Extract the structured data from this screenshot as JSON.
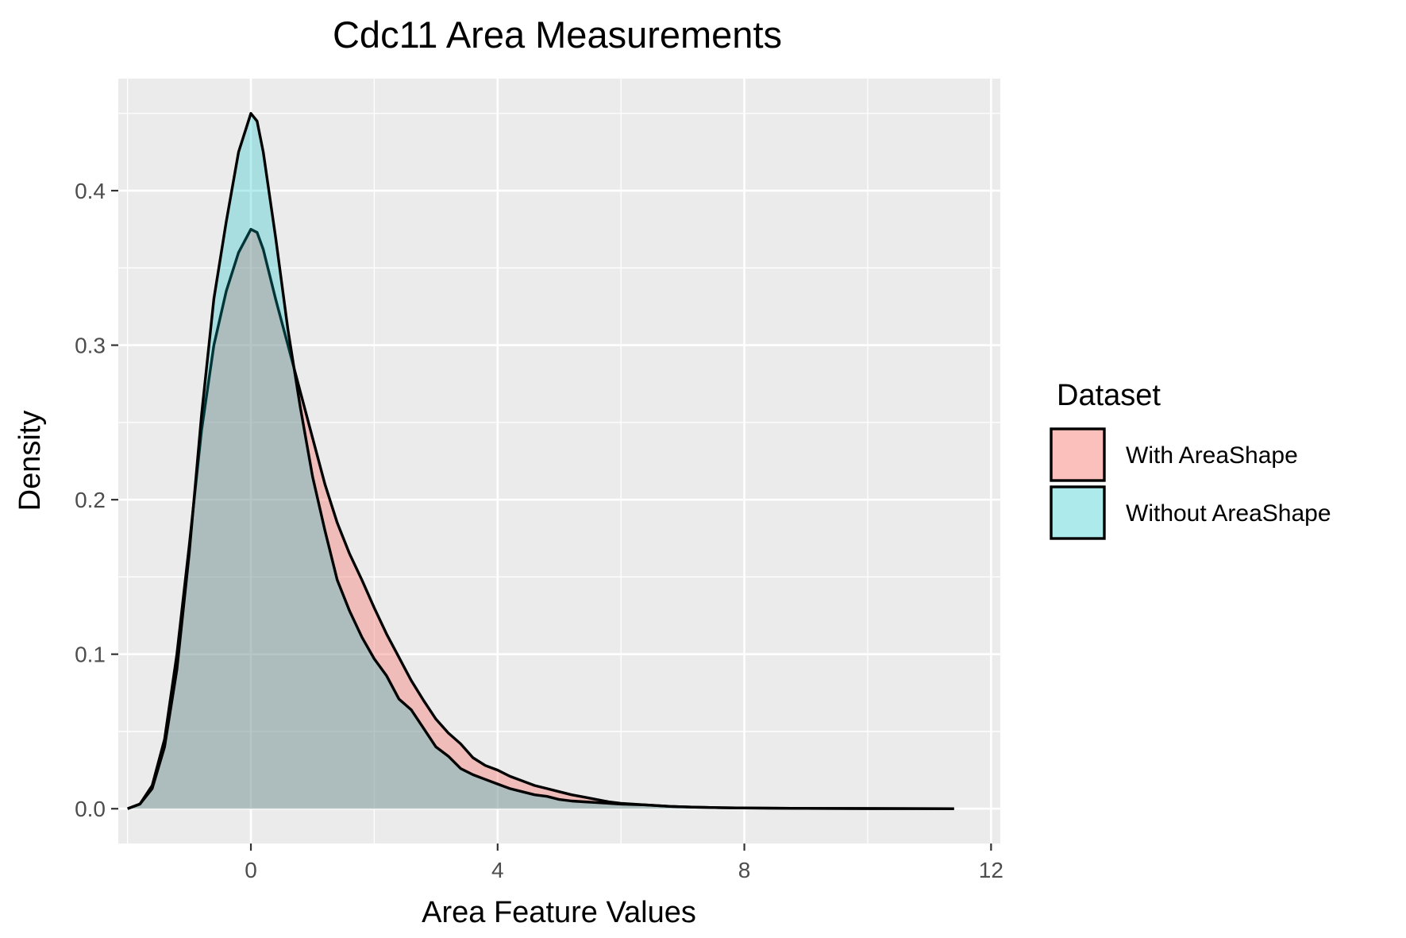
{
  "chart_data": {
    "type": "area",
    "title": "Cdc11 Area Measurements",
    "xlabel": "Area Feature Values",
    "ylabel": "Density",
    "xlim": [
      -2.15,
      12.15
    ],
    "ylim": [
      -0.0225,
      0.4725
    ],
    "x_ticks": [
      {
        "value": 0,
        "label": "0"
      },
      {
        "value": 4,
        "label": "4"
      },
      {
        "value": 8,
        "label": "8"
      },
      {
        "value": 12,
        "label": "12"
      }
    ],
    "x_minor_ticks": [
      -2,
      2,
      6,
      10
    ],
    "y_ticks": [
      {
        "value": 0.0,
        "label": "0.0"
      },
      {
        "value": 0.1,
        "label": "0.1"
      },
      {
        "value": 0.2,
        "label": "0.2"
      },
      {
        "value": 0.3,
        "label": "0.3"
      },
      {
        "value": 0.4,
        "label": "0.4"
      }
    ],
    "y_minor_ticks": [
      0.05,
      0.15,
      0.25,
      0.35,
      0.45
    ],
    "grid": true,
    "legend": {
      "title": "Dataset",
      "position": "right"
    },
    "series": [
      {
        "name": "With AreaShape",
        "fill": "#F8766D",
        "fill_opacity": 0.4,
        "points": [
          [
            -2.0,
            0.0
          ],
          [
            -1.8,
            0.003
          ],
          [
            -1.6,
            0.015
          ],
          [
            -1.4,
            0.045
          ],
          [
            -1.2,
            0.1
          ],
          [
            -1.0,
            0.17
          ],
          [
            -0.8,
            0.245
          ],
          [
            -0.6,
            0.3
          ],
          [
            -0.4,
            0.335
          ],
          [
            -0.2,
            0.36
          ],
          [
            0.0,
            0.375
          ],
          [
            0.1,
            0.373
          ],
          [
            0.2,
            0.362
          ],
          [
            0.4,
            0.33
          ],
          [
            0.6,
            0.3
          ],
          [
            0.8,
            0.27
          ],
          [
            1.0,
            0.24
          ],
          [
            1.2,
            0.21
          ],
          [
            1.4,
            0.185
          ],
          [
            1.6,
            0.165
          ],
          [
            1.8,
            0.148
          ],
          [
            2.0,
            0.13
          ],
          [
            2.2,
            0.113
          ],
          [
            2.4,
            0.098
          ],
          [
            2.6,
            0.083
          ],
          [
            2.8,
            0.07
          ],
          [
            3.0,
            0.058
          ],
          [
            3.2,
            0.049
          ],
          [
            3.4,
            0.042
          ],
          [
            3.6,
            0.033
          ],
          [
            3.8,
            0.028
          ],
          [
            4.0,
            0.025
          ],
          [
            4.2,
            0.021
          ],
          [
            4.4,
            0.018
          ],
          [
            4.6,
            0.015
          ],
          [
            4.8,
            0.013
          ],
          [
            5.0,
            0.011
          ],
          [
            5.2,
            0.009
          ],
          [
            5.4,
            0.0075
          ],
          [
            5.6,
            0.006
          ],
          [
            5.8,
            0.0045
          ],
          [
            6.0,
            0.0035
          ],
          [
            6.4,
            0.0025
          ],
          [
            6.8,
            0.0015
          ],
          [
            7.2,
            0.001
          ],
          [
            7.6,
            0.0007
          ],
          [
            8.0,
            0.0005
          ],
          [
            8.5,
            0.0003
          ],
          [
            9.0,
            0.0002
          ],
          [
            10.0,
            0.0001
          ],
          [
            11.4,
            0.0
          ]
        ]
      },
      {
        "name": "Without AreaShape",
        "fill": "#00BFC4",
        "fill_opacity": 0.28,
        "points": [
          [
            -2.0,
            0.0
          ],
          [
            -1.8,
            0.003
          ],
          [
            -1.6,
            0.013
          ],
          [
            -1.4,
            0.04
          ],
          [
            -1.2,
            0.09
          ],
          [
            -1.0,
            0.165
          ],
          [
            -0.8,
            0.255
          ],
          [
            -0.6,
            0.33
          ],
          [
            -0.4,
            0.38
          ],
          [
            -0.2,
            0.425
          ],
          [
            0.0,
            0.45
          ],
          [
            0.1,
            0.445
          ],
          [
            0.2,
            0.425
          ],
          [
            0.4,
            0.37
          ],
          [
            0.6,
            0.31
          ],
          [
            0.8,
            0.26
          ],
          [
            1.0,
            0.215
          ],
          [
            1.2,
            0.18
          ],
          [
            1.4,
            0.148
          ],
          [
            1.6,
            0.128
          ],
          [
            1.8,
            0.111
          ],
          [
            2.0,
            0.097
          ],
          [
            2.2,
            0.086
          ],
          [
            2.4,
            0.071
          ],
          [
            2.6,
            0.064
          ],
          [
            2.8,
            0.052
          ],
          [
            3.0,
            0.04
          ],
          [
            3.2,
            0.034
          ],
          [
            3.4,
            0.026
          ],
          [
            3.6,
            0.022
          ],
          [
            3.8,
            0.019
          ],
          [
            4.0,
            0.016
          ],
          [
            4.2,
            0.013
          ],
          [
            4.4,
            0.011
          ],
          [
            4.6,
            0.009
          ],
          [
            4.8,
            0.008
          ],
          [
            5.0,
            0.006
          ],
          [
            5.2,
            0.005
          ],
          [
            5.4,
            0.0045
          ],
          [
            5.6,
            0.004
          ],
          [
            5.8,
            0.0035
          ],
          [
            6.0,
            0.003
          ],
          [
            6.4,
            0.0025
          ],
          [
            6.8,
            0.0015
          ],
          [
            7.2,
            0.001
          ],
          [
            7.6,
            0.0007
          ],
          [
            8.0,
            0.0005
          ],
          [
            8.5,
            0.0003
          ],
          [
            9.0,
            0.0002
          ],
          [
            10.0,
            0.0001
          ],
          [
            11.4,
            0.0
          ]
        ]
      }
    ]
  }
}
